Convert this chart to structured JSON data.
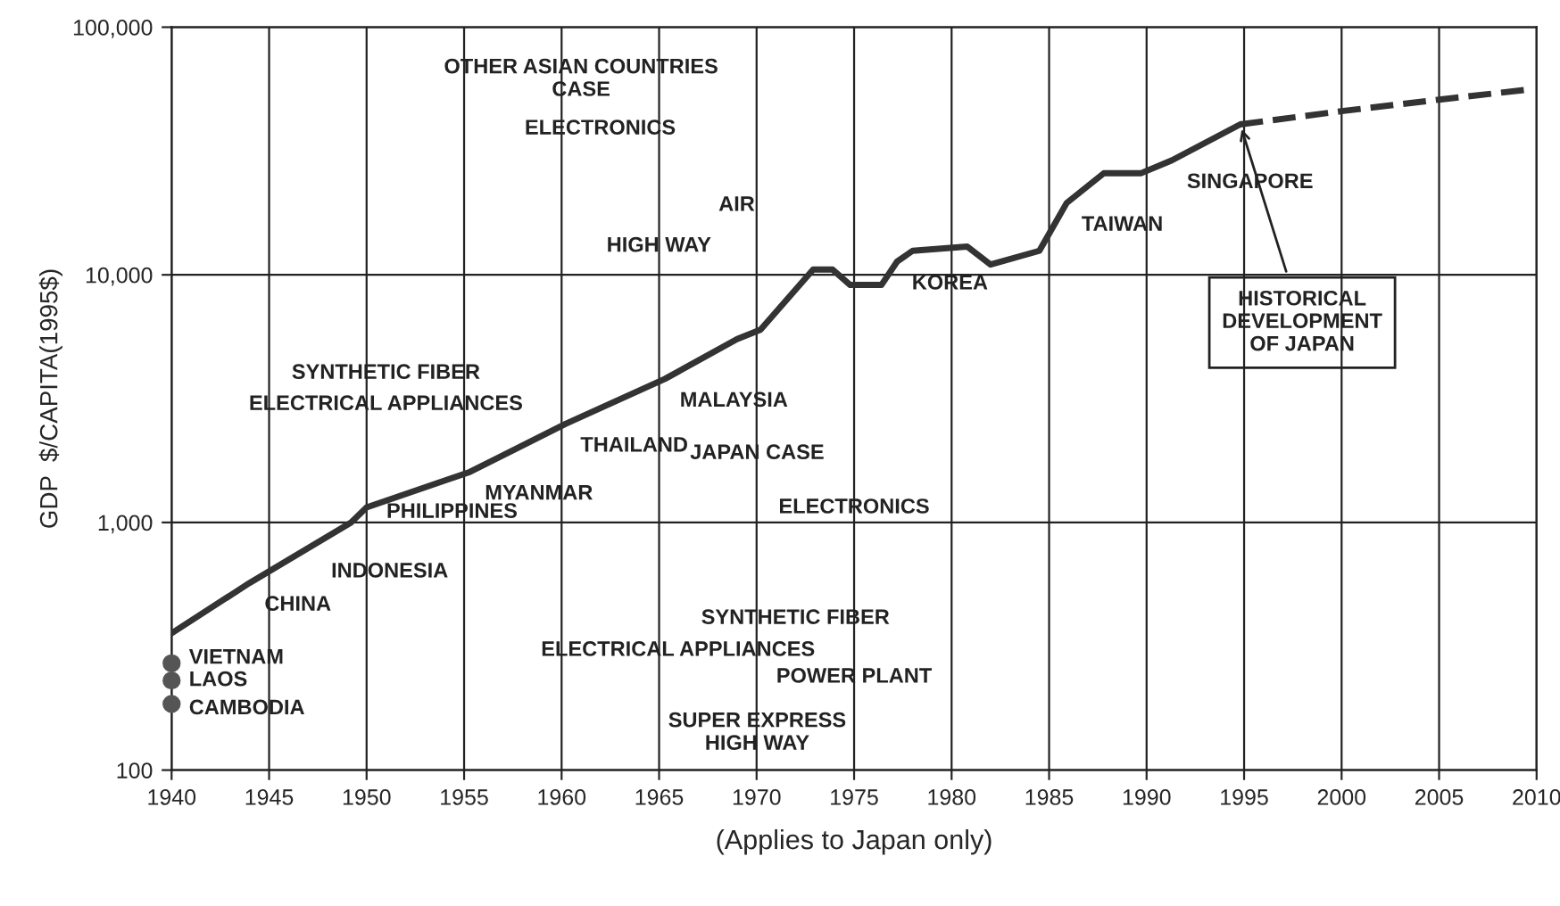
{
  "chart_data": {
    "type": "line",
    "xlabel": "(Applies to Japan only)",
    "ylabel": "GDP  $/CAPITA(1995$)",
    "log": "y",
    "xlim": [
      1940,
      2010
    ],
    "xticks": [
      1940,
      1945,
      1950,
      1955,
      1960,
      1965,
      1970,
      1975,
      1980,
      1985,
      1990,
      1995,
      2000,
      2005,
      2010
    ],
    "ylim": [
      100,
      100000
    ],
    "yticks": [
      {
        "value": 100,
        "label": "100"
      },
      {
        "value": 1000,
        "label": "1,000"
      },
      {
        "value": 10000,
        "label": "10,000"
      },
      {
        "value": 100000,
        "label": "100,000"
      }
    ],
    "grid": true,
    "marker": "none",
    "series": [
      {
        "color": "#333333",
        "line_style": "solid",
        "x": [
          1940,
          1944,
          1949.2,
          1950,
          1955.3,
          1960.2,
          1965.3,
          1969,
          1970.2,
          1972.9,
          1973.9,
          1974.8,
          1976.4,
          1977.2,
          1978,
          1980.8,
          1982,
          1984.5,
          1985.9,
          1987.8,
          1989.7,
          1991.3,
          1994.8
        ],
        "values": [
          357,
          570,
          1000,
          1150,
          1600,
          2500,
          3800,
          5500,
          6000,
          10500,
          10500,
          9100,
          9100,
          11300,
          12500,
          13000,
          11000,
          12500,
          19500,
          25700,
          25700,
          29000,
          40500
        ]
      },
      {
        "color": "#333333",
        "line_style": "dashed",
        "x": [
          1994.8,
          2000,
          2005,
          2009.6
        ],
        "values": [
          40500,
          45800,
          51000,
          56000
        ]
      },
      {
        "type": "scatter",
        "color": "#555555",
        "marker": "circle",
        "x": [
          1940,
          1940,
          1940
        ],
        "values": [
          270,
          230,
          185
        ]
      }
    ],
    "annotations": [
      "OTHER ASIAN COUNTRIES\nCASE",
      "ELECTRONICS",
      "AIR",
      "HIGH WAY",
      "SYNTHETIC FIBER",
      "ELECTRICAL APPLIANCES",
      {
        "text": "VIETNAM",
        "x": 1940,
        "y": 270
      },
      {
        "text": "LAOS",
        "x": 1940,
        "y": 230
      },
      {
        "text": "CAMBODIA",
        "x": 1940,
        "y": 185
      },
      {
        "text": "CHINA",
        "x": 1944,
        "y": 570
      },
      {
        "text": "INDONESIA",
        "x": 1949.2,
        "y": 1000
      },
      {
        "text": "PHILIPPINES",
        "x": 1950,
        "y": 1150
      },
      {
        "text": "MYANMAR",
        "x": 1955.3,
        "y": 1600
      },
      {
        "text": "THAILAND",
        "x": 1960.2,
        "y": 2500
      },
      {
        "text": "MALAYSIA",
        "x": 1965.3,
        "y": 3800
      },
      {
        "text": "KOREA",
        "x": 1977.2,
        "y": 11300
      },
      {
        "text": "TAIWAN",
        "x": 1985.9,
        "y": 19500
      },
      {
        "text": "SINGAPORE",
        "x": 1991.3,
        "y": 29000
      },
      {
        "text": "HISTORICAL\nDEVELOPMENT\nOF JAPAN",
        "x": 1994.8,
        "y": 40500
      },
      "JAPAN CASE",
      "ELECTRONICS",
      "SYNTHETIC FIBER",
      "ELECTRICAL APPLIANCES",
      "POWER PLANT",
      "SUPER EXPRESS\nHIGH WAY"
    ]
  }
}
